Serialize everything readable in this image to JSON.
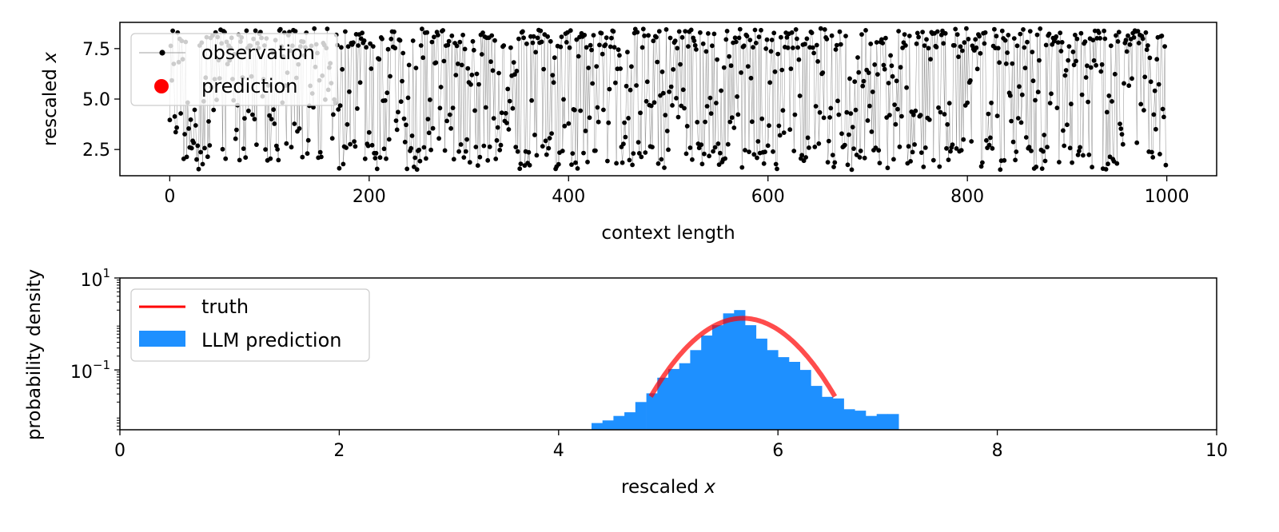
{
  "chart_data": [
    {
      "type": "line",
      "xlabel": "context length",
      "ylabel": "rescaled",
      "ylabel_var": "x",
      "xlim": [
        -50,
        1050
      ],
      "ylim": [
        1.2,
        8.8
      ],
      "xticks": [
        0,
        200,
        400,
        600,
        800,
        1000
      ],
      "xtick_labels": [
        "0",
        "200",
        "400",
        "600",
        "800",
        "1000"
      ],
      "yticks": [
        2.5,
        5.0,
        7.5
      ],
      "ytick_labels": [
        "2.5",
        "5.0",
        "7.5"
      ],
      "grid": false,
      "legend_position": "top-left",
      "series": [
        {
          "name": "observation",
          "color": "#000000",
          "style": "line-with-dots",
          "n_points": 1000,
          "x_range": [
            0,
            999
          ],
          "y_range": [
            1.5,
            8.5
          ]
        },
        {
          "name": "prediction",
          "color": "#ff0000",
          "style": "points",
          "values": []
        }
      ]
    },
    {
      "type": "bar",
      "xlabel": "rescaled",
      "xlabel_var": "x",
      "ylabel": "probability density",
      "yscale": "log",
      "xlim": [
        0,
        10
      ],
      "ylim": [
        0.005,
        10
      ],
      "xticks": [
        0,
        2,
        4,
        6,
        8,
        10
      ],
      "xtick_labels": [
        "0",
        "2",
        "4",
        "6",
        "8",
        "10"
      ],
      "ytick_labels": [
        {
          "value": 10,
          "base": "10",
          "exp": "1"
        },
        {
          "value": 0.1,
          "base": "10",
          "exp": "−1"
        }
      ],
      "grid": false,
      "legend_position": "top-left",
      "bin_width": 0.1,
      "bins": [
        {
          "x": 4.3,
          "density": 0.007
        },
        {
          "x": 4.4,
          "density": 0.008
        },
        {
          "x": 4.5,
          "density": 0.01
        },
        {
          "x": 4.6,
          "density": 0.012
        },
        {
          "x": 4.7,
          "density": 0.02
        },
        {
          "x": 4.8,
          "density": 0.031
        },
        {
          "x": 4.9,
          "density": 0.068
        },
        {
          "x": 5.0,
          "density": 0.105
        },
        {
          "x": 5.1,
          "density": 0.14
        },
        {
          "x": 5.2,
          "density": 0.27
        },
        {
          "x": 5.3,
          "density": 0.56
        },
        {
          "x": 5.4,
          "density": 0.94
        },
        {
          "x": 5.5,
          "density": 1.7
        },
        {
          "x": 5.6,
          "density": 2.0
        },
        {
          "x": 5.7,
          "density": 0.94
        },
        {
          "x": 5.8,
          "density": 0.48
        },
        {
          "x": 5.9,
          "density": 0.27
        },
        {
          "x": 6.0,
          "density": 0.19
        },
        {
          "x": 6.1,
          "density": 0.15
        },
        {
          "x": 6.2,
          "density": 0.1
        },
        {
          "x": 6.3,
          "density": 0.045
        },
        {
          "x": 6.4,
          "density": 0.026
        },
        {
          "x": 6.5,
          "density": 0.024
        },
        {
          "x": 6.6,
          "density": 0.014
        },
        {
          "x": 6.7,
          "density": 0.013
        },
        {
          "x": 6.8,
          "density": 0.01
        },
        {
          "x": 6.9,
          "density": 0.011
        },
        {
          "x": 7.0,
          "density": 0.011
        },
        {
          "x": 7.1,
          "density": 0.005
        }
      ],
      "series": [
        {
          "name": "truth",
          "color": "#ff0000",
          "type": "line",
          "gaussian_mean": 5.68,
          "gaussian_sd": 0.3,
          "x_range": [
            4.84,
            6.52
          ]
        },
        {
          "name": "LLM prediction",
          "color": "#1e90ff",
          "type": "histogram"
        }
      ]
    }
  ]
}
